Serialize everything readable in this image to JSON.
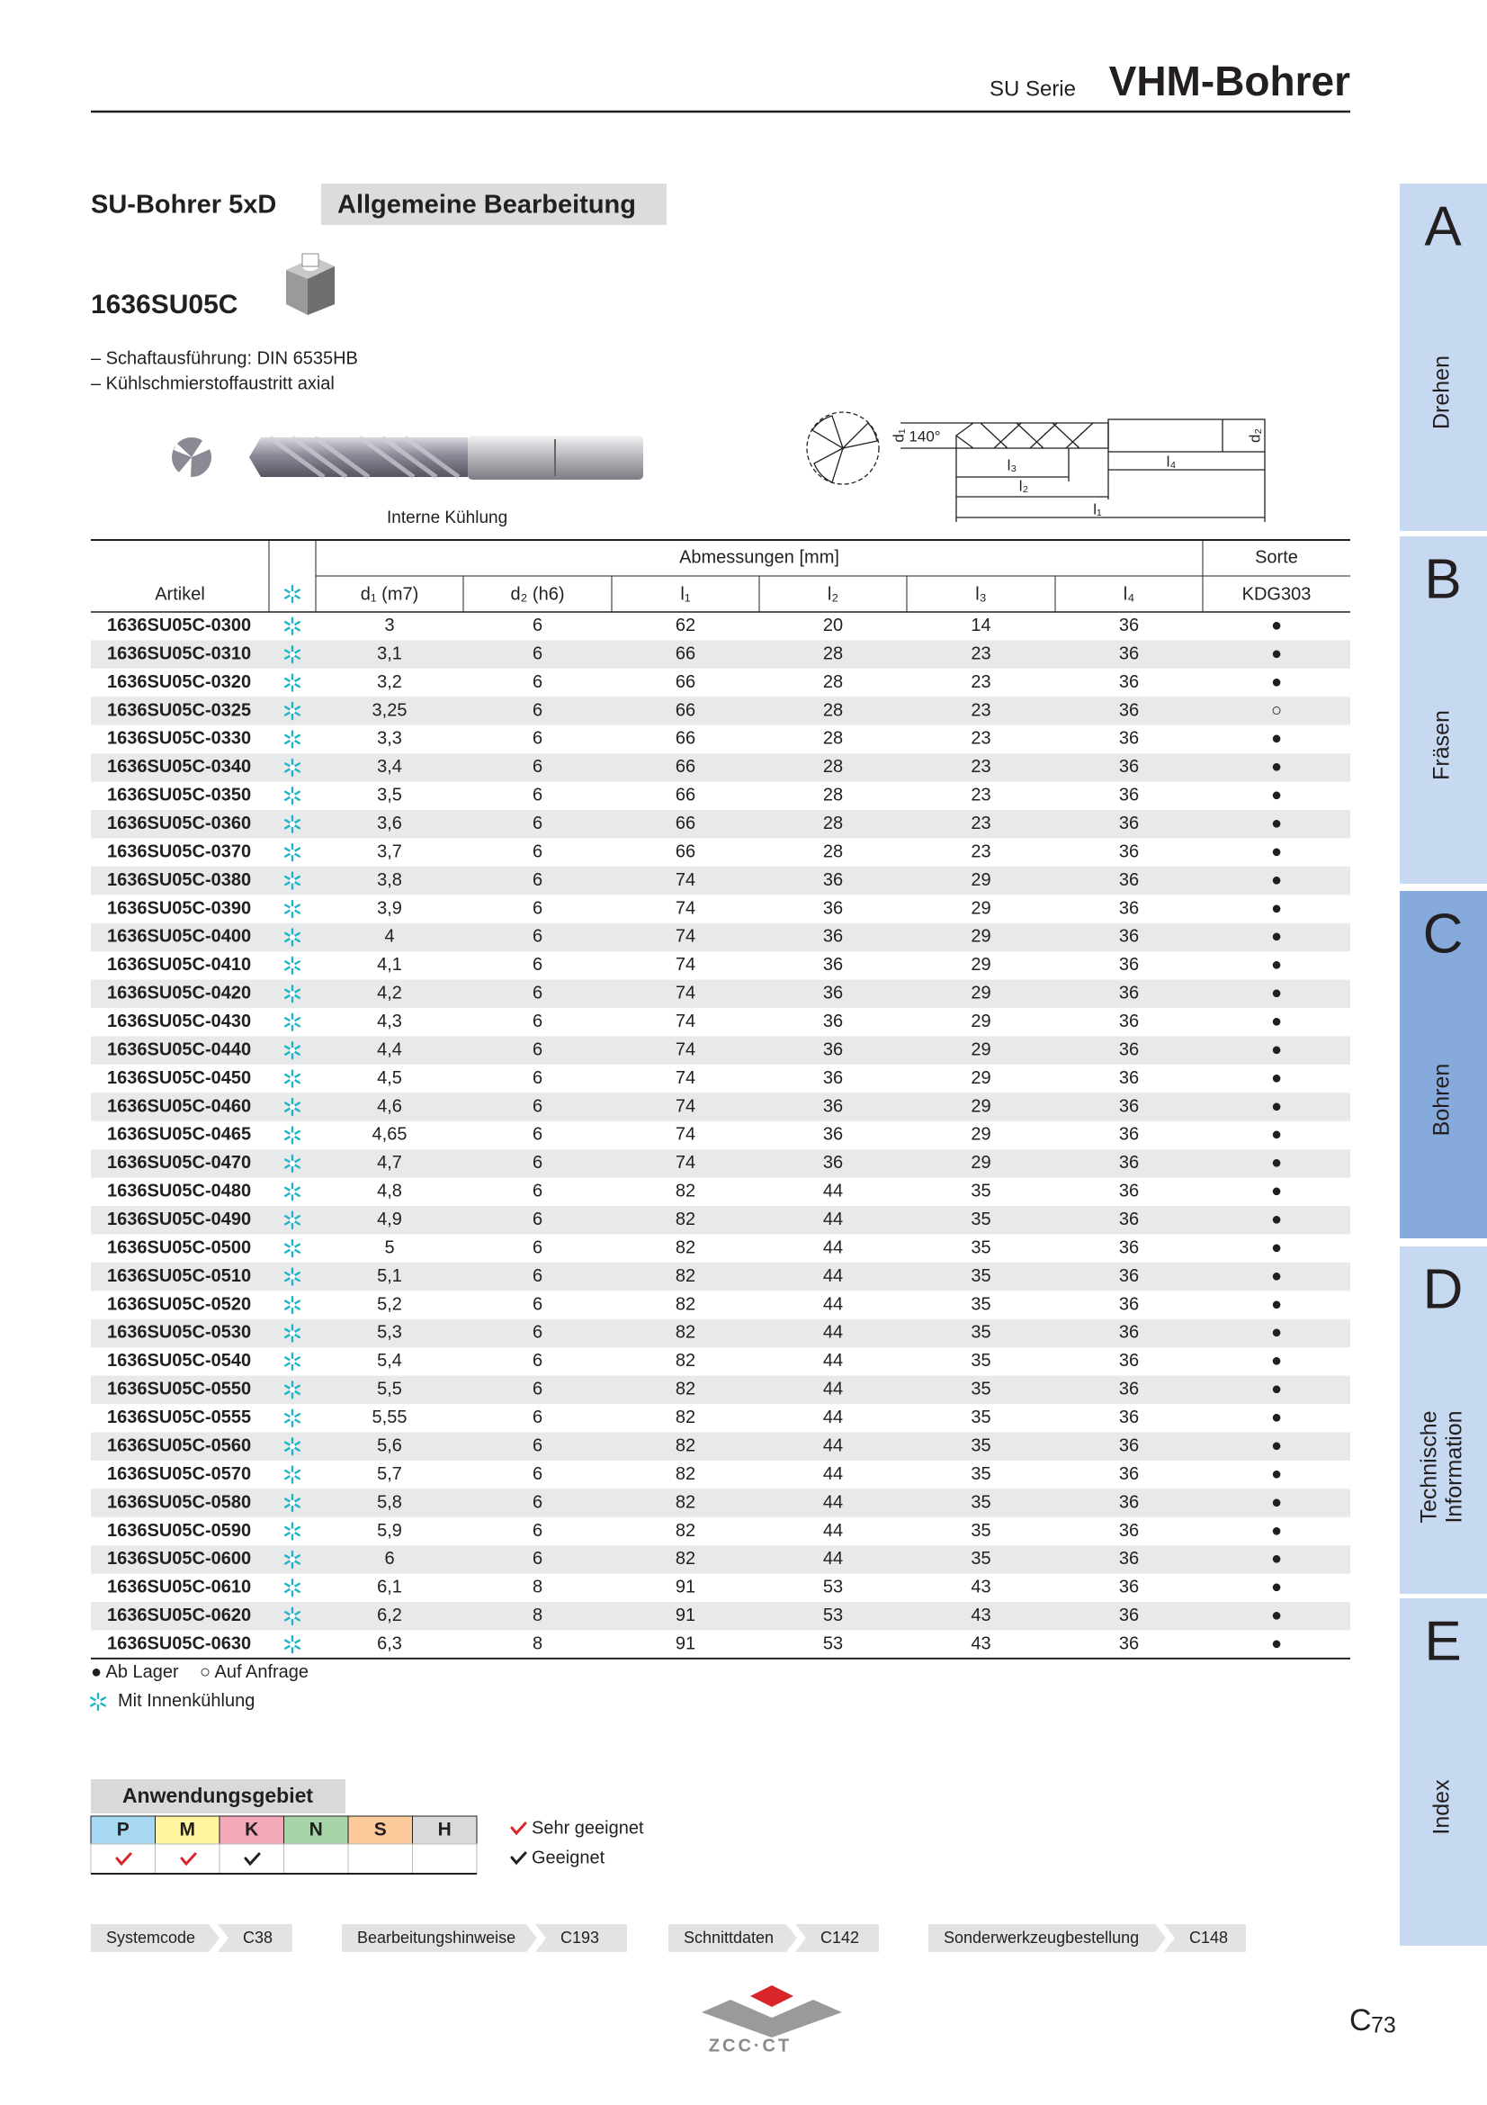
{
  "header": {
    "series": "SU Serie",
    "title": "VHM-Bohrer"
  },
  "product": {
    "family": "SU-Bohrer 5xD",
    "application": "Allgemeine Bearbeitung",
    "code": "1636SU05C",
    "features": [
      "– Schaftausführung: DIN 6535HB",
      "– Kühlschmierstoffaustritt axial"
    ],
    "image_caption": "Interne Kühlung"
  },
  "drawing": {
    "d1": "d₁",
    "angle": "140°",
    "d2": "d₂",
    "l1": "l₁",
    "l2": "l₂",
    "l3": "l₃",
    "l4": "l₄"
  },
  "table": {
    "group_headers": [
      "Abmessungen [mm]",
      "Sorte"
    ],
    "columns": [
      "Artikel",
      "d₁ (m7)",
      "d₂ (h6)",
      "l₁",
      "l₂",
      "l₃",
      "l₄",
      "KDG303"
    ],
    "rows": [
      [
        "1636SU05C-0300",
        "3",
        "6",
        "62",
        "20",
        "14",
        "36",
        "●"
      ],
      [
        "1636SU05C-0310",
        "3,1",
        "6",
        "66",
        "28",
        "23",
        "36",
        "●"
      ],
      [
        "1636SU05C-0320",
        "3,2",
        "6",
        "66",
        "28",
        "23",
        "36",
        "●"
      ],
      [
        "1636SU05C-0325",
        "3,25",
        "6",
        "66",
        "28",
        "23",
        "36",
        "○"
      ],
      [
        "1636SU05C-0330",
        "3,3",
        "6",
        "66",
        "28",
        "23",
        "36",
        "●"
      ],
      [
        "1636SU05C-0340",
        "3,4",
        "6",
        "66",
        "28",
        "23",
        "36",
        "●"
      ],
      [
        "1636SU05C-0350",
        "3,5",
        "6",
        "66",
        "28",
        "23",
        "36",
        "●"
      ],
      [
        "1636SU05C-0360",
        "3,6",
        "6",
        "66",
        "28",
        "23",
        "36",
        "●"
      ],
      [
        "1636SU05C-0370",
        "3,7",
        "6",
        "66",
        "28",
        "23",
        "36",
        "●"
      ],
      [
        "1636SU05C-0380",
        "3,8",
        "6",
        "74",
        "36",
        "29",
        "36",
        "●"
      ],
      [
        "1636SU05C-0390",
        "3,9",
        "6",
        "74",
        "36",
        "29",
        "36",
        "●"
      ],
      [
        "1636SU05C-0400",
        "4",
        "6",
        "74",
        "36",
        "29",
        "36",
        "●"
      ],
      [
        "1636SU05C-0410",
        "4,1",
        "6",
        "74",
        "36",
        "29",
        "36",
        "●"
      ],
      [
        "1636SU05C-0420",
        "4,2",
        "6",
        "74",
        "36",
        "29",
        "36",
        "●"
      ],
      [
        "1636SU05C-0430",
        "4,3",
        "6",
        "74",
        "36",
        "29",
        "36",
        "●"
      ],
      [
        "1636SU05C-0440",
        "4,4",
        "6",
        "74",
        "36",
        "29",
        "36",
        "●"
      ],
      [
        "1636SU05C-0450",
        "4,5",
        "6",
        "74",
        "36",
        "29",
        "36",
        "●"
      ],
      [
        "1636SU05C-0460",
        "4,6",
        "6",
        "74",
        "36",
        "29",
        "36",
        "●"
      ],
      [
        "1636SU05C-0465",
        "4,65",
        "6",
        "74",
        "36",
        "29",
        "36",
        "●"
      ],
      [
        "1636SU05C-0470",
        "4,7",
        "6",
        "74",
        "36",
        "29",
        "36",
        "●"
      ],
      [
        "1636SU05C-0480",
        "4,8",
        "6",
        "82",
        "44",
        "35",
        "36",
        "●"
      ],
      [
        "1636SU05C-0490",
        "4,9",
        "6",
        "82",
        "44",
        "35",
        "36",
        "●"
      ],
      [
        "1636SU05C-0500",
        "5",
        "6",
        "82",
        "44",
        "35",
        "36",
        "●"
      ],
      [
        "1636SU05C-0510",
        "5,1",
        "6",
        "82",
        "44",
        "35",
        "36",
        "●"
      ],
      [
        "1636SU05C-0520",
        "5,2",
        "6",
        "82",
        "44",
        "35",
        "36",
        "●"
      ],
      [
        "1636SU05C-0530",
        "5,3",
        "6",
        "82",
        "44",
        "35",
        "36",
        "●"
      ],
      [
        "1636SU05C-0540",
        "5,4",
        "6",
        "82",
        "44",
        "35",
        "36",
        "●"
      ],
      [
        "1636SU05C-0550",
        "5,5",
        "6",
        "82",
        "44",
        "35",
        "36",
        "●"
      ],
      [
        "1636SU05C-0555",
        "5,55",
        "6",
        "82",
        "44",
        "35",
        "36",
        "●"
      ],
      [
        "1636SU05C-0560",
        "5,6",
        "6",
        "82",
        "44",
        "35",
        "36",
        "●"
      ],
      [
        "1636SU05C-0570",
        "5,7",
        "6",
        "82",
        "44",
        "35",
        "36",
        "●"
      ],
      [
        "1636SU05C-0580",
        "5,8",
        "6",
        "82",
        "44",
        "35",
        "36",
        "●"
      ],
      [
        "1636SU05C-0590",
        "5,9",
        "6",
        "82",
        "44",
        "35",
        "36",
        "●"
      ],
      [
        "1636SU05C-0600",
        "6",
        "6",
        "82",
        "44",
        "35",
        "36",
        "●"
      ],
      [
        "1636SU05C-0610",
        "6,1",
        "8",
        "91",
        "53",
        "43",
        "36",
        "●"
      ],
      [
        "1636SU05C-0620",
        "6,2",
        "8",
        "91",
        "53",
        "43",
        "36",
        "●"
      ],
      [
        "1636SU05C-0630",
        "6,3",
        "8",
        "91",
        "53",
        "43",
        "36",
        "●"
      ]
    ]
  },
  "legend": {
    "in_stock": "● Ab Lager",
    "on_request": "○ Auf Anfrage",
    "coolant": "Mit Innenkühlung"
  },
  "application": {
    "title": "Anwendungsgebiet",
    "materials": [
      "P",
      "M",
      "K",
      "N",
      "S",
      "H"
    ],
    "legend": [
      "Sehr geeignet",
      "Geeignet"
    ]
  },
  "references": [
    {
      "label": "Systemcode",
      "page": "C38"
    },
    {
      "label": "Bearbeitungshinweise",
      "page": "C193"
    },
    {
      "label": "Schnittdaten",
      "page": "C142"
    },
    {
      "label": "Sonderwerkzeugbestellung",
      "page": "C148"
    }
  ],
  "logo": "ZCC·CT",
  "page": {
    "letter": "C",
    "number": "73"
  },
  "tabs": [
    {
      "letter": "A",
      "lines": [
        "Drehen"
      ]
    },
    {
      "letter": "B",
      "lines": [
        "Fräsen"
      ]
    },
    {
      "letter": "C",
      "lines": [
        "Bohren"
      ],
      "active": true
    },
    {
      "letter": "D",
      "lines": [
        "Technische",
        "Information"
      ]
    },
    {
      "letter": "E",
      "lines": [
        "Index"
      ]
    }
  ]
}
